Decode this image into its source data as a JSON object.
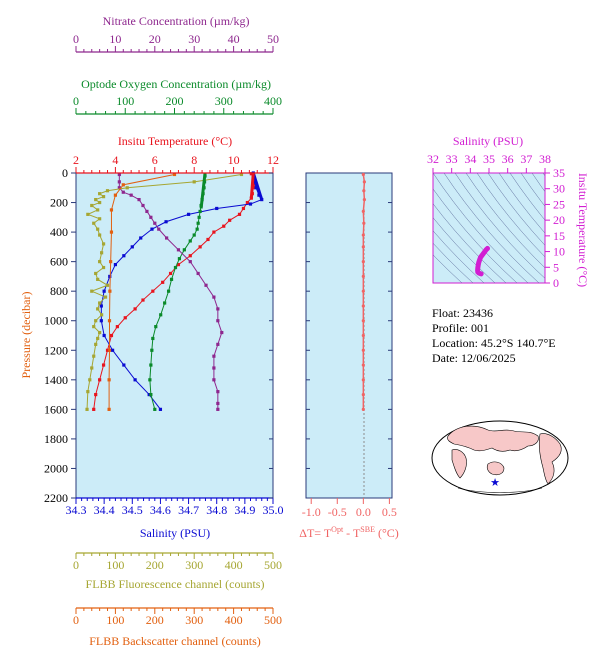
{
  "colors": {
    "nitrate": "#8e278e",
    "oxygen": "#0a8a2a",
    "temperature": "#e8141e",
    "salinity": "#0a0ad2",
    "fluorescence": "#a6a632",
    "backscatter": "#e26010",
    "delta_t": "#f06464",
    "ts_axis": "#d21ed2",
    "panel_bg": "#ccecf8",
    "axis": "#2a3a7a"
  },
  "axes": {
    "nitrate": {
      "label": "Nitrate Concentration (µm/kg)",
      "ticks": [
        "0",
        "10",
        "20",
        "30",
        "40",
        "50"
      ],
      "range": [
        0,
        50
      ]
    },
    "oxygen": {
      "label": "Optode Oxygen Concentration (µm/kg)",
      "ticks": [
        "0",
        "100",
        "200",
        "300",
        "400"
      ],
      "range": [
        0,
        400
      ]
    },
    "temperature": {
      "label": "Insitu Temperature (°C)",
      "ticks": [
        "2",
        "4",
        "6",
        "8",
        "10",
        "12"
      ],
      "range": [
        2,
        12
      ]
    },
    "pressure": {
      "label": "Pressure (decibar)",
      "ticks": [
        "0",
        "200",
        "400",
        "600",
        "800",
        "1000",
        "1200",
        "1400",
        "1600",
        "1800",
        "2000",
        "2200"
      ],
      "range": [
        0,
        2200
      ]
    },
    "salinity": {
      "label": "Salinity (PSU)",
      "ticks": [
        "34.3",
        "34.4",
        "34.5",
        "34.6",
        "34.7",
        "34.8",
        "34.9",
        "35.0"
      ],
      "range": [
        34.3,
        35.0
      ]
    },
    "fluorescence": {
      "label": "FLBB Fluorescence channel (counts)",
      "ticks": [
        "0",
        "100",
        "200",
        "300",
        "400",
        "500"
      ],
      "range": [
        0,
        500
      ]
    },
    "backscatter": {
      "label": "FLBB Backscatter channel (counts)",
      "ticks": [
        "0",
        "100",
        "200",
        "300",
        "400",
        "500"
      ],
      "range": [
        0,
        500
      ]
    },
    "delta_t": {
      "label_prefix": "ΔT= T",
      "label_sup1": "Opt",
      "label_mid": " - T",
      "label_sup2": "SBE",
      "label_suffix": " (°C)",
      "ticks": [
        "-1.0",
        "-0.5",
        "0.0",
        "0.5"
      ],
      "range": [
        -1.1,
        0.55
      ]
    },
    "ts_salinity": {
      "label": "Salinity (PSU)",
      "ticks": [
        "32",
        "33",
        "34",
        "35",
        "36",
        "37",
        "38"
      ],
      "range": [
        32,
        38
      ]
    },
    "ts_temperature": {
      "label": "Insitu Temperature (°C)",
      "ticks": [
        "0",
        "5",
        "10",
        "15",
        "20",
        "25",
        "30",
        "35"
      ],
      "range": [
        0,
        35
      ]
    }
  },
  "float_info": {
    "float": "Float:  23436",
    "profile": "Profile:  001",
    "location": "Location:  45.2°S  140.7°E",
    "date": "Date:  12/06/2025"
  },
  "chart_data": [
    {
      "type": "line",
      "title": "",
      "ylabel": "Pressure (decibar)",
      "ylim": [
        2200,
        0
      ],
      "grid": false,
      "series": [
        {
          "name": "Insitu Temperature",
          "axis": "temperature",
          "points": [
            [
              10.9,
              5
            ],
            [
              11.0,
              20
            ],
            [
              11.0,
              40
            ],
            [
              11.0,
              60
            ],
            [
              11.0,
              80
            ],
            [
              11.0,
              100
            ],
            [
              10.95,
              140
            ],
            [
              10.9,
              170
            ],
            [
              10.7,
              200
            ],
            [
              10.5,
              240
            ],
            [
              10.3,
              280
            ],
            [
              9.8,
              320
            ],
            [
              9.5,
              360
            ],
            [
              9.0,
              400
            ],
            [
              8.7,
              450
            ],
            [
              8.3,
              500
            ],
            [
              7.8,
              560
            ],
            [
              7.2,
              620
            ],
            [
              6.8,
              680
            ],
            [
              6.4,
              740
            ],
            [
              5.9,
              800
            ],
            [
              5.4,
              860
            ],
            [
              5.0,
              920
            ],
            [
              4.5,
              980
            ],
            [
              4.1,
              1040
            ],
            [
              3.8,
              1100
            ],
            [
              3.6,
              1200
            ],
            [
              3.4,
              1300
            ],
            [
              3.2,
              1400
            ],
            [
              3.0,
              1500
            ],
            [
              2.9,
              1600
            ]
          ]
        },
        {
          "name": "Salinity",
          "axis": "salinity",
          "points": [
            [
              34.93,
              0
            ],
            [
              34.93,
              40
            ],
            [
              34.94,
              100
            ],
            [
              34.95,
              150
            ],
            [
              34.96,
              180
            ],
            [
              34.92,
              210
            ],
            [
              34.8,
              240
            ],
            [
              34.7,
              280
            ],
            [
              34.62,
              330
            ],
            [
              34.57,
              380
            ],
            [
              34.53,
              440
            ],
            [
              34.5,
              500
            ],
            [
              34.47,
              560
            ],
            [
              34.44,
              620
            ],
            [
              34.42,
              700
            ],
            [
              34.4,
              800
            ],
            [
              34.39,
              900
            ],
            [
              34.39,
              1000
            ],
            [
              34.4,
              1100
            ],
            [
              34.43,
              1200
            ],
            [
              34.47,
              1300
            ],
            [
              34.51,
              1400
            ],
            [
              34.56,
              1500
            ],
            [
              34.6,
              1600
            ]
          ]
        },
        {
          "name": "Optode Oxygen Concentration",
          "axis": "oxygen",
          "points": [
            [
              262,
              20
            ],
            [
              261,
              60
            ],
            [
              260,
              100
            ],
            [
              258,
              140
            ],
            [
              256,
              180
            ],
            [
              254,
              220
            ],
            [
              252,
              260
            ],
            [
              250,
              300
            ],
            [
              248,
              340
            ],
            [
              246,
              380
            ],
            [
              240,
              420
            ],
            [
              232,
              460
            ],
            [
              220,
              520
            ],
            [
              210,
              580
            ],
            [
              202,
              640
            ],
            [
              194,
              720
            ],
            [
              188,
              800
            ],
            [
              180,
              880
            ],
            [
              172,
              960
            ],
            [
              162,
              1040
            ],
            [
              156,
              1120
            ],
            [
              154,
              1200
            ],
            [
              152,
              1300
            ],
            [
              150,
              1400
            ],
            [
              152,
              1500
            ],
            [
              160,
              1600
            ]
          ]
        },
        {
          "name": "Nitrate Concentration",
          "axis": "nitrate",
          "points": [
            [
              11,
              10
            ],
            [
              11,
              60
            ],
            [
              11,
              100
            ],
            [
              12,
              130
            ],
            [
              14,
              150
            ],
            [
              16,
              180
            ],
            [
              17,
              220
            ],
            [
              18,
              260
            ],
            [
              19,
              300
            ],
            [
              20,
              340
            ],
            [
              21,
              380
            ],
            [
              23,
              440
            ],
            [
              26,
              520
            ],
            [
              29,
              600
            ],
            [
              31,
              680
            ],
            [
              33,
              760
            ],
            [
              35,
              840
            ],
            [
              36,
              920
            ],
            [
              36,
              1000
            ],
            [
              37,
              1080
            ],
            [
              36,
              1160
            ],
            [
              35,
              1240
            ],
            [
              35,
              1320
            ],
            [
              35,
              1400
            ],
            [
              36,
              1480
            ],
            [
              36,
              1560
            ],
            [
              36,
              1600
            ]
          ]
        },
        {
          "name": "FLBB Fluorescence",
          "axis": "fluorescence",
          "points": [
            [
              420,
              10
            ],
            [
              300,
              60
            ],
            [
              130,
              100
            ],
            [
              80,
              120
            ],
            [
              60,
              140
            ],
            [
              70,
              160
            ],
            [
              50,
              180
            ],
            [
              60,
              200
            ],
            [
              40,
              220
            ],
            [
              55,
              250
            ],
            [
              30,
              280
            ],
            [
              60,
              310
            ],
            [
              45,
              340
            ],
            [
              55,
              380
            ],
            [
              60,
              420
            ],
            [
              70,
              480
            ],
            [
              65,
              540
            ],
            [
              60,
              600
            ],
            [
              70,
              640
            ],
            [
              50,
              680
            ],
            [
              55,
              720
            ],
            [
              80,
              760
            ],
            [
              40,
              800
            ],
            [
              75,
              840
            ],
            [
              60,
              880
            ],
            [
              55,
              920
            ],
            [
              65,
              960
            ],
            [
              50,
              1000
            ],
            [
              45,
              1040
            ],
            [
              60,
              1080
            ],
            [
              55,
              1120
            ],
            [
              50,
              1160
            ],
            [
              45,
              1240
            ],
            [
              40,
              1320
            ],
            [
              35,
              1400
            ],
            [
              30,
              1480
            ],
            [
              28,
              1600
            ]
          ]
        },
        {
          "name": "FLBB Backscatter",
          "axis": "backscatter",
          "points": [
            [
              250,
              10
            ],
            [
              120,
              80
            ],
            [
              100,
              150
            ],
            [
              90,
              250
            ],
            [
              90,
              400
            ],
            [
              88,
              600
            ],
            [
              86,
              800
            ],
            [
              85,
              1000
            ],
            [
              85,
              1200
            ],
            [
              84,
              1400
            ],
            [
              84,
              1600
            ]
          ]
        }
      ]
    },
    {
      "type": "line",
      "title": "",
      "xlabel": "ΔT= TOpt - TSBE (°C)",
      "xlim": [
        -1.1,
        0.55
      ],
      "ylim": [
        2200,
        0
      ],
      "series": [
        {
          "name": "ΔT",
          "points": [
            [
              0.0,
              10
            ],
            [
              0.02,
              60
            ],
            [
              0.01,
              120
            ],
            [
              0.02,
              180
            ],
            [
              0.0,
              260
            ],
            [
              0.01,
              340
            ],
            [
              0.0,
              420
            ],
            [
              0.0,
              500
            ],
            [
              0.0,
              600
            ],
            [
              0.0,
              700
            ],
            [
              0.0,
              800
            ],
            [
              0.0,
              900
            ],
            [
              0.0,
              1000
            ],
            [
              0.0,
              1100
            ],
            [
              0.0,
              1200
            ],
            [
              0.0,
              1300
            ],
            [
              0.0,
              1400
            ],
            [
              0.0,
              1500
            ],
            [
              0.0,
              1600
            ]
          ]
        }
      ]
    },
    {
      "type": "scatter",
      "title": "",
      "xlabel": "Salinity (PSU)",
      "ylabel": "Insitu Temperature (°C)",
      "xlim": [
        32,
        38
      ],
      "ylim": [
        0,
        35
      ],
      "series": [
        {
          "name": "T-S",
          "points": [
            [
              34.92,
              11.0
            ],
            [
              34.85,
              10.6
            ],
            [
              34.75,
              9.8
            ],
            [
              34.65,
              9.0
            ],
            [
              34.55,
              8.2
            ],
            [
              34.5,
              7.4
            ],
            [
              34.45,
              6.5
            ],
            [
              34.42,
              5.6
            ],
            [
              34.4,
              4.8
            ],
            [
              34.39,
              4.0
            ],
            [
              34.4,
              3.5
            ],
            [
              34.45,
              3.2
            ],
            [
              34.52,
              3.0
            ],
            [
              34.58,
              2.9
            ]
          ]
        }
      ]
    }
  ]
}
